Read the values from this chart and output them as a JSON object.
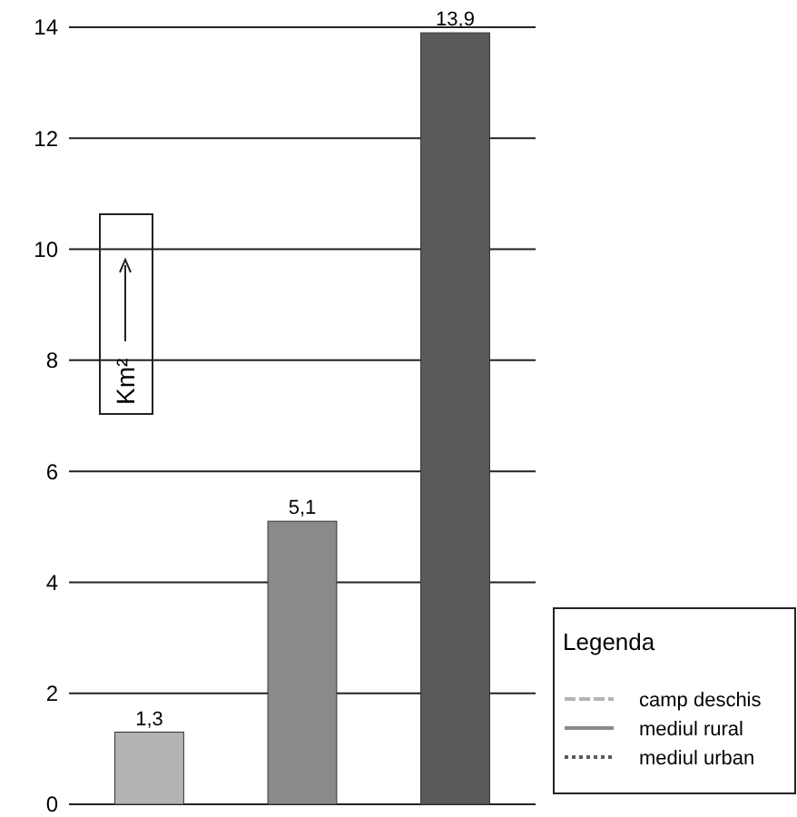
{
  "chart_data": {
    "type": "bar",
    "ylabel": "Km²",
    "legend_title": "Legenda",
    "categories": [
      null,
      null,
      null
    ],
    "series": [
      {
        "name": "camp deschis",
        "color": "#b4b4b4",
        "values": [
          1.3,
          null,
          null
        ],
        "value_labels": [
          "1,3",
          null,
          null
        ]
      },
      {
        "name": "mediul rural",
        "color": "#8a8a8a",
        "values": [
          null,
          5.1,
          null
        ],
        "value_labels": [
          null,
          "5,1",
          null
        ]
      },
      {
        "name": "mediul urban",
        "color": "#5a5a5a",
        "values": [
          null,
          null,
          13.9
        ],
        "value_labels": [
          null,
          null,
          "13,9"
        ]
      }
    ],
    "ylim": [
      0,
      14
    ],
    "yticks": [
      0,
      2,
      4,
      6,
      8,
      10,
      12,
      14
    ],
    "grid": "y",
    "legend": "bottom right",
    "tick_labels": "y"
  }
}
